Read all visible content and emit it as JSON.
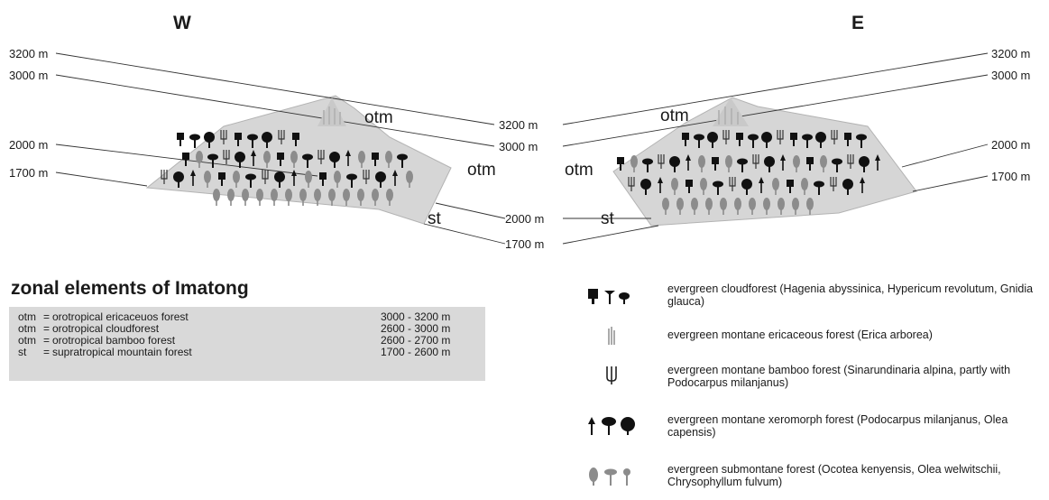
{
  "directions": {
    "west": "W",
    "east": "E"
  },
  "elevations_left": [
    "3200 m",
    "3000 m",
    "2000 m",
    "1700 m"
  ],
  "elevations_center": [
    "3200 m",
    "3000 m",
    "2000 m",
    "1700 m"
  ],
  "elevations_right": [
    "3200 m",
    "3000 m",
    "2000 m",
    "1700 m"
  ],
  "zone_labels": {
    "west_top": "otm",
    "west_mid": "otm",
    "west_low": "st",
    "east_top": "otm",
    "east_mid": "otm",
    "east_low": "st"
  },
  "zonal": {
    "title": "zonal elements of Imatong",
    "rows": [
      {
        "abbr": "otm",
        "eq": "=",
        "desc": "orotropical ericaceuos forest",
        "range": "3000 - 3200 m"
      },
      {
        "abbr": "otm",
        "eq": "=",
        "desc": "orotropical cloudforest",
        "range": "2600 - 3000 m"
      },
      {
        "abbr": "otm",
        "eq": "=",
        "desc": "orotropical bamboo forest",
        "range": "2600 - 2700 m"
      },
      {
        "abbr": "st",
        "eq": "=",
        "desc": "supratropical mountain forest",
        "range": "1700 - 2600 m"
      }
    ]
  },
  "legend": [
    {
      "icon": "cloudforest-trees-icon",
      "text": "evergreen cloudforest  (Hagenia abyssinica, Hypericum revolutum, Gnidia glauca)"
    },
    {
      "icon": "ericaceous-shrub-icon",
      "text": "evergreen montane ericaceous forest (Erica arborea)"
    },
    {
      "icon": "bamboo-icon",
      "text": "evergreen montane bamboo forest (Sinarundinaria alpina, partly with Podocarpus milanjanus)"
    },
    {
      "icon": "xeromorph-trees-icon",
      "text": "evergreen montane xeromorph forest (Podocarpus milanjanus, Olea capensis)"
    },
    {
      "icon": "submontane-trees-icon",
      "text": "evergreen submontane forest  (Ocotea kenyensis, Olea welwitschii, Chrysophyllum fulvum)"
    }
  ],
  "colors": {
    "mountain_fill": "#d6d6d6",
    "tree": "#111111",
    "tree_grey": "#8c8c8c",
    "line": "#333333"
  }
}
